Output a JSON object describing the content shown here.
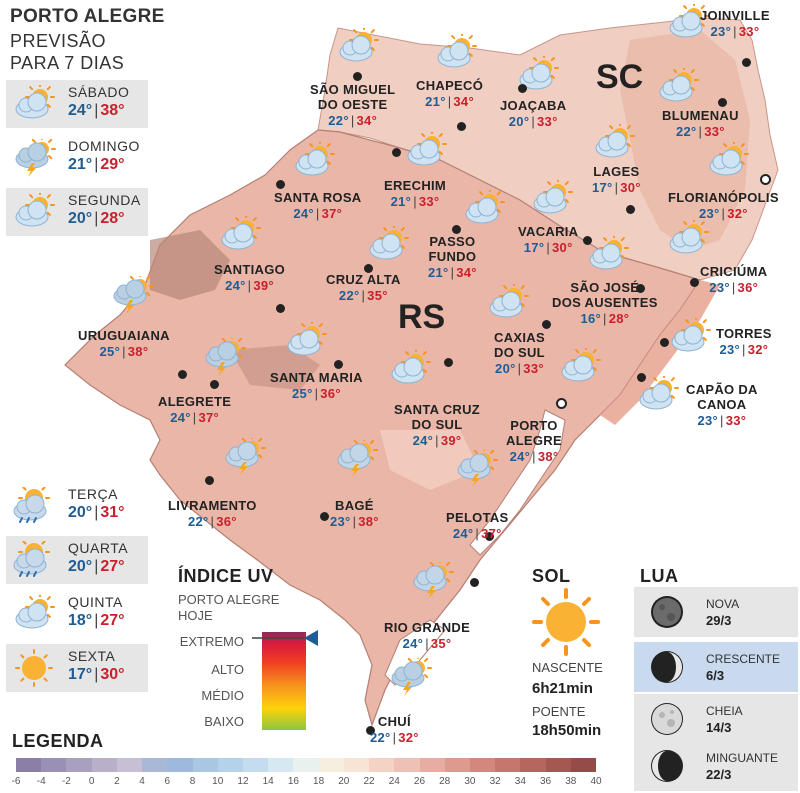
{
  "header": {
    "title": "PORTO ALEGRE",
    "subtitle_1": "PREVISÃO",
    "subtitle_2": "PARA 7 DIAS"
  },
  "forecast": [
    {
      "day": "SÁBADO",
      "min": "24°",
      "max": "38°",
      "icon": "partly-cloudy-icon"
    },
    {
      "day": "DOMINGO",
      "min": "21°",
      "max": "29°",
      "icon": "thunderstorm-icon"
    },
    {
      "day": "SEGUNDA",
      "min": "20°",
      "max": "28°",
      "icon": "partly-cloudy-icon"
    },
    {
      "day": "TERÇA",
      "min": "20°",
      "max": "31°",
      "icon": "sun-rain-icon"
    },
    {
      "day": "QUARTA",
      "min": "20°",
      "max": "27°",
      "icon": "sun-rain-icon"
    },
    {
      "day": "QUINTA",
      "min": "18°",
      "max": "27°",
      "icon": "partly-cloudy-icon"
    },
    {
      "day": "SEXTA",
      "min": "17°",
      "max": "30°",
      "icon": "sun-icon"
    }
  ],
  "states": {
    "sc": "SC",
    "rs": "RS"
  },
  "cities": [
    {
      "name": "JOINVILLE",
      "min": "23°",
      "max": "33°"
    },
    {
      "name": "SÃO MIGUEL",
      "name2": "DO OESTE",
      "min": "22°",
      "max": "34°"
    },
    {
      "name": "CHAPECÓ",
      "min": "21°",
      "max": "34°"
    },
    {
      "name": "JOAÇABA",
      "min": "20°",
      "max": "33°"
    },
    {
      "name": "BLUMENAU",
      "min": "22°",
      "max": "33°"
    },
    {
      "name": "LAGES",
      "min": "17°",
      "max": "30°"
    },
    {
      "name": "FLORIANÓPOLIS",
      "min": "23°",
      "max": "32°"
    },
    {
      "name": "SANTA ROSA",
      "min": "24°",
      "max": "37°"
    },
    {
      "name": "ERECHIM",
      "min": "21°",
      "max": "33°"
    },
    {
      "name": "VACARIA",
      "min": "17°",
      "max": "30°"
    },
    {
      "name": "PASSO",
      "name2": "FUNDO",
      "min": "21°",
      "max": "34°"
    },
    {
      "name": "SANTIAGO",
      "min": "24°",
      "max": "39°"
    },
    {
      "name": "CRUZ ALTA",
      "min": "22°",
      "max": "35°"
    },
    {
      "name": "SÃO JOSÉ",
      "name2": "DOS AUSENTES",
      "min": "16°",
      "max": "28°"
    },
    {
      "name": "CRICIÚMA",
      "min": "23°",
      "max": "36°"
    },
    {
      "name": "URUGUAIANA",
      "min": "25°",
      "max": "38°"
    },
    {
      "name": "TORRES",
      "min": "23°",
      "max": "32°"
    },
    {
      "name": "CAXIAS",
      "name2": "DO SUL",
      "min": "20°",
      "max": "33°"
    },
    {
      "name": "SANTA MARIA",
      "min": "25°",
      "max": "36°"
    },
    {
      "name": "ALEGRETE",
      "min": "24°",
      "max": "37°"
    },
    {
      "name": "CAPÃO DA",
      "name2": "CANOA",
      "min": "23°",
      "max": "33°"
    },
    {
      "name": "SANTA CRUZ",
      "name2": "DO SUL",
      "min": "24°",
      "max": "39°"
    },
    {
      "name": "PORTO",
      "name2": "ALEGRE",
      "min": "24°",
      "max": "38°"
    },
    {
      "name": "LIVRAMENTO",
      "min": "22°",
      "max": "36°"
    },
    {
      "name": "BAGÉ",
      "min": "23°",
      "max": "38°"
    },
    {
      "name": "PELOTAS",
      "min": "24°",
      "max": "37°"
    },
    {
      "name": "RIO GRANDE",
      "min": "24°",
      "max": "35°"
    },
    {
      "name": "CHUÍ",
      "min": "22°",
      "max": "32°"
    }
  ],
  "uv": {
    "title": "ÍNDICE UV",
    "sub1": "PORTO ALEGRE",
    "sub2": "HOJE",
    "levels": [
      "EXTREMO",
      "ALTO",
      "MÉDIO",
      "BAIXO"
    ],
    "current_level": "EXTREMO"
  },
  "sun": {
    "title": "SOL",
    "rise_label": "NASCENTE",
    "rise": "6h21min",
    "set_label": "POENTE",
    "set": "18h50min"
  },
  "moon": {
    "title": "LUA",
    "phases": [
      {
        "name": "NOVA",
        "date": "29/3",
        "icon": "new-moon-icon"
      },
      {
        "name": "CRESCENTE",
        "date": "6/3",
        "icon": "waxing-moon-icon",
        "active": true
      },
      {
        "name": "CHEIA",
        "date": "14/3",
        "icon": "full-moon-icon"
      },
      {
        "name": "MINGUANTE",
        "date": "22/3",
        "icon": "waning-moon-icon"
      }
    ]
  },
  "legend": {
    "title": "LEGENDA",
    "ticks": [
      "-6",
      "-4",
      "-2",
      "0",
      "2",
      "4",
      "6",
      "8",
      "10",
      "12",
      "14",
      "16",
      "18",
      "20",
      "22",
      "24",
      "26",
      "28",
      "30",
      "32",
      "34",
      "36",
      "38",
      "40"
    ],
    "colors": [
      "#8b7fa8",
      "#9a8fb4",
      "#a99fbe",
      "#b8b0c9",
      "#c7c0d4",
      "#a9b8d6",
      "#9fb9dc",
      "#a9c6e3",
      "#b4d3ea",
      "#c4ddee",
      "#d6e8f2",
      "#e9f1ee",
      "#f5efe0",
      "#f8e4d4",
      "#f4d3c5",
      "#efc1b5",
      "#e8ada2",
      "#df9a8f",
      "#d4877d",
      "#c5766d",
      "#b5665f",
      "#a55752",
      "#954b47"
    ]
  },
  "colors": {
    "min_temp": "#1e5d94",
    "max_temp": "#c8202c",
    "map_fill": "#eab8ac",
    "map_dark": "#b98479",
    "sea": "#ffffff"
  }
}
